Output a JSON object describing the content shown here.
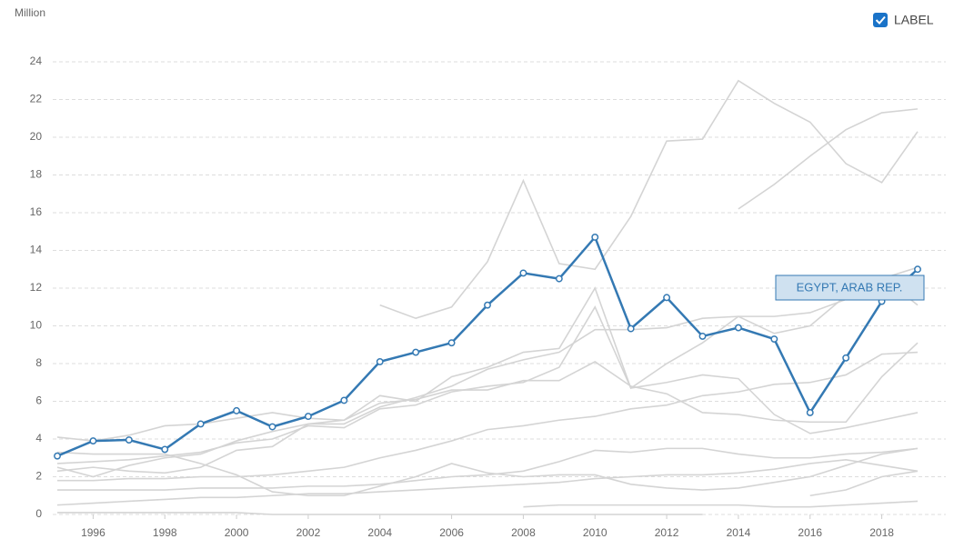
{
  "chart_data": {
    "type": "line",
    "y_label": "Million",
    "checkbox_label": "LABEL",
    "label_checked": true,
    "x": [
      1995,
      1996,
      1997,
      1998,
      1999,
      2000,
      2001,
      2002,
      2003,
      2004,
      2005,
      2006,
      2007,
      2008,
      2009,
      2010,
      2011,
      2012,
      2013,
      2014,
      2015,
      2016,
      2017,
      2018,
      2019
    ],
    "xlim": [
      1995,
      2019
    ],
    "xticks": [
      1996,
      1998,
      2000,
      2002,
      2004,
      2006,
      2008,
      2010,
      2012,
      2014,
      2016,
      2018
    ],
    "ylim": [
      0,
      24
    ],
    "yticks": [
      0,
      2,
      4,
      6,
      8,
      10,
      12,
      14,
      16,
      18,
      20,
      22,
      24
    ],
    "grid": true,
    "series": [
      {
        "name": "EGYPT, ARAB REP.",
        "color": "#3479b3",
        "values": [
          3.1,
          3.9,
          3.95,
          3.45,
          4.8,
          5.5,
          4.65,
          5.2,
          6.05,
          8.1,
          8.6,
          9.1,
          11.1,
          12.8,
          12.5,
          14.7,
          9.85,
          11.5,
          9.45,
          9.9,
          9.3,
          5.4,
          8.3,
          11.3,
          13.0
        ]
      },
      {
        "color": "#d4d4d4",
        "values": [
          null,
          null,
          null,
          null,
          null,
          null,
          null,
          null,
          null,
          11.1,
          10.4,
          11.0,
          13.4,
          17.7,
          13.3,
          13.0,
          15.8,
          19.8,
          19.9,
          23.0,
          21.8,
          20.8,
          18.6,
          17.6,
          20.3
        ]
      },
      {
        "color": "#d4d4d4",
        "values": [
          null,
          null,
          null,
          null,
          null,
          null,
          null,
          null,
          null,
          null,
          null,
          null,
          null,
          null,
          null,
          null,
          null,
          null,
          null,
          16.2,
          17.5,
          19.0,
          20.4,
          21.3,
          21.5
        ]
      },
      {
        "color": "#d4d4d4",
        "values": [
          4.1,
          3.9,
          4.2,
          4.7,
          4.8,
          5.1,
          5.4,
          5.1,
          5.0,
          6.3,
          6.0,
          7.3,
          7.8,
          8.6,
          8.8,
          12.0,
          6.7,
          8.0,
          9.1,
          10.5,
          9.6,
          10.0,
          11.6,
          12.5,
          13.1
        ]
      },
      {
        "color": "#d4d4d4",
        "values": [
          2.5,
          2.0,
          2.6,
          3.0,
          3.2,
          3.9,
          4.4,
          4.8,
          4.8,
          5.7,
          6.2,
          6.8,
          7.7,
          8.2,
          8.6,
          9.8,
          9.8,
          9.9,
          10.4,
          10.5,
          10.5,
          10.7,
          11.4,
          12.6,
          11.1
        ]
      },
      {
        "color": "#d4d4d4",
        "values": [
          2.7,
          2.8,
          2.9,
          3.1,
          3.3,
          3.8,
          4.0,
          4.7,
          4.6,
          5.6,
          5.8,
          6.5,
          6.8,
          7.0,
          7.8,
          11.0,
          6.7,
          7.0,
          7.4,
          7.2,
          5.3,
          4.3,
          4.6,
          5.0,
          5.4
        ]
      },
      {
        "color": "#d4d4d4",
        "values": [
          2.3,
          2.5,
          2.3,
          2.2,
          2.5,
          3.4,
          3.6,
          4.8,
          5.0,
          5.9,
          6.1,
          6.6,
          6.6,
          7.1,
          7.1,
          8.1,
          6.8,
          6.4,
          5.4,
          5.3,
          5.0,
          4.9,
          4.9,
          7.3,
          9.1
        ]
      },
      {
        "color": "#d4d4d4",
        "values": [
          3.3,
          3.2,
          3.2,
          3.2,
          2.7,
          2.1,
          1.2,
          1.0,
          1.0,
          1.5,
          2.0,
          2.7,
          2.2,
          2.0,
          2.1,
          2.1,
          1.6,
          1.4,
          1.3,
          1.4,
          1.7,
          2.0,
          2.6,
          3.2,
          3.5
        ]
      },
      {
        "color": "#d4d4d4",
        "values": [
          1.8,
          1.8,
          1.9,
          1.9,
          2.0,
          2.0,
          2.1,
          2.3,
          2.5,
          3.0,
          3.4,
          3.9,
          4.5,
          4.7,
          5.0,
          5.2,
          5.6,
          5.8,
          6.3,
          6.5,
          6.9,
          7.0,
          7.4,
          8.5,
          8.6
        ]
      },
      {
        "color": "#d4d4d4",
        "values": [
          1.3,
          1.3,
          1.3,
          1.3,
          1.4,
          1.4,
          1.4,
          1.5,
          1.5,
          1.6,
          1.8,
          2.0,
          2.1,
          2.3,
          2.8,
          3.4,
          3.3,
          3.5,
          3.5,
          3.2,
          3.0,
          3.0,
          3.2,
          3.3,
          3.5
        ]
      },
      {
        "color": "#d4d4d4",
        "values": [
          0.5,
          0.6,
          0.7,
          0.8,
          0.9,
          0.9,
          1.0,
          1.1,
          1.1,
          1.2,
          1.3,
          1.4,
          1.5,
          1.6,
          1.7,
          1.9,
          2.0,
          2.1,
          2.1,
          2.2,
          2.4,
          2.7,
          2.9,
          2.6,
          2.3
        ]
      },
      {
        "color": "#d4d4d4",
        "values": [
          0.1,
          0.1,
          0.1,
          0.1,
          0.1,
          0.1,
          0.0,
          0.0,
          0.0,
          0.0,
          0.0,
          0.0,
          0.0,
          0.0,
          0.0,
          0.0,
          0.0,
          0.0,
          0.0,
          null,
          null,
          null,
          null,
          null,
          null
        ]
      },
      {
        "color": "#d4d4d4",
        "values": [
          null,
          null,
          null,
          null,
          null,
          null,
          null,
          null,
          null,
          null,
          null,
          null,
          null,
          0.4,
          0.5,
          0.5,
          0.5,
          0.5,
          0.5,
          0.5,
          0.4,
          0.4,
          0.5,
          0.6,
          0.7
        ]
      },
      {
        "color": "#d4d4d4",
        "values": [
          null,
          null,
          null,
          null,
          null,
          null,
          null,
          null,
          null,
          null,
          null,
          null,
          null,
          null,
          null,
          null,
          null,
          null,
          null,
          null,
          null,
          1.0,
          1.3,
          2.0,
          2.3
        ]
      }
    ]
  }
}
